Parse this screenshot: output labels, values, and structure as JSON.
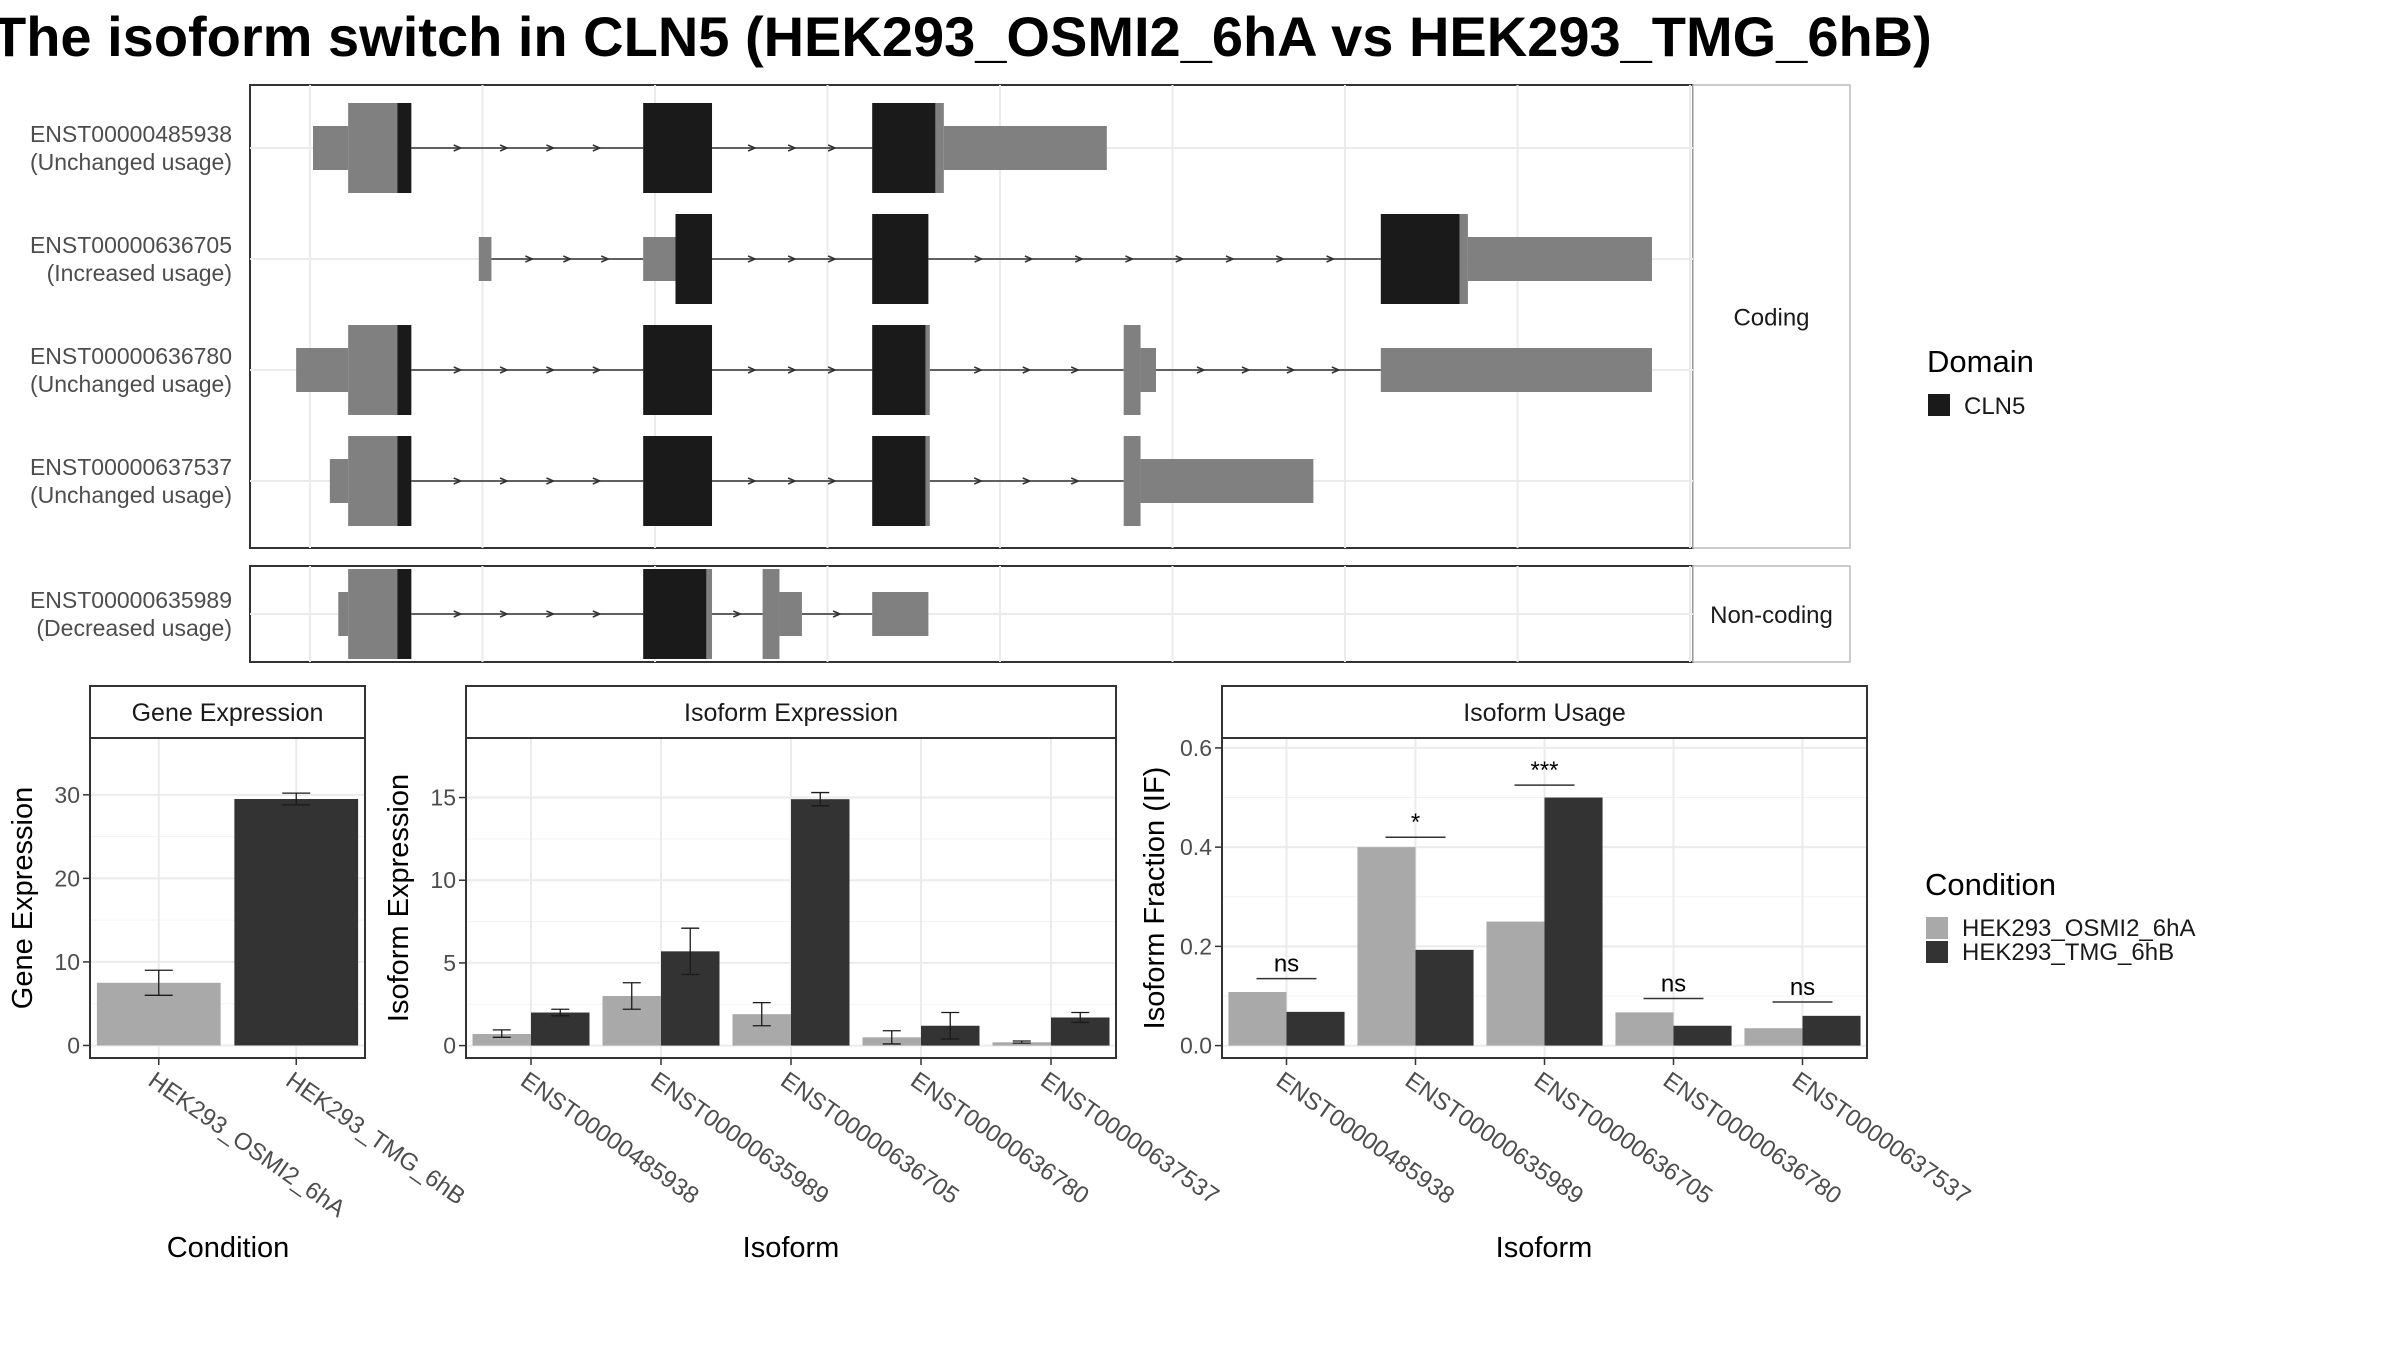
{
  "title": "The isoform switch in CLN5 (HEK293_OSMI2_6hA vs HEK293_TMG_6hB)",
  "colors": {
    "domain": "#1a1a1a",
    "utr": "#808080",
    "cond1": "#a9a9a9",
    "cond2": "#333333",
    "panel_border": "#333333",
    "strip_fill": "#ffffff",
    "grid": "#ebebeb"
  },
  "structure": {
    "coding_label": "Coding",
    "noncoding_label": "Non-coding",
    "coding_isoforms": [
      {
        "id": "ENST00000485938",
        "usage": "(Unchanged usage)",
        "segments": [
          {
            "start": 0.0,
            "end": 0.025,
            "kind": "utr",
            "size": "small"
          },
          {
            "start": 0.025,
            "end": 0.06,
            "kind": "utr",
            "size": "large"
          },
          {
            "start": 0.06,
            "end": 0.07,
            "kind": "cds",
            "size": "large"
          },
          {
            "start": 0.235,
            "end": 0.284,
            "kind": "cds",
            "size": "large"
          },
          {
            "start": 0.398,
            "end": 0.443,
            "kind": "cds",
            "size": "large"
          },
          {
            "start": 0.443,
            "end": 0.449,
            "kind": "utr",
            "size": "large"
          },
          {
            "start": 0.449,
            "end": 0.565,
            "kind": "utr",
            "size": "small"
          }
        ],
        "introns": [
          [
            0.07,
            0.235
          ],
          [
            0.284,
            0.398
          ]
        ]
      },
      {
        "id": "ENST00000636705",
        "usage": "(Increased usage)",
        "segments": [
          {
            "start": 0.118,
            "end": 0.127,
            "kind": "utr",
            "size": "small"
          },
          {
            "start": 0.235,
            "end": 0.258,
            "kind": "utr",
            "size": "small"
          },
          {
            "start": 0.258,
            "end": 0.284,
            "kind": "cds",
            "size": "large"
          },
          {
            "start": 0.398,
            "end": 0.438,
            "kind": "cds",
            "size": "large"
          },
          {
            "start": 0.76,
            "end": 0.816,
            "kind": "cds",
            "size": "large"
          },
          {
            "start": 0.816,
            "end": 0.822,
            "kind": "utr",
            "size": "large"
          },
          {
            "start": 0.822,
            "end": 0.953,
            "kind": "utr",
            "size": "small"
          }
        ],
        "introns": [
          [
            0.127,
            0.235
          ],
          [
            0.284,
            0.398
          ],
          [
            0.438,
            0.76
          ]
        ]
      },
      {
        "id": "ENST00000636780",
        "usage": "(Unchanged usage)",
        "segments": [
          {
            "start": -0.012,
            "end": 0.025,
            "kind": "utr",
            "size": "small"
          },
          {
            "start": 0.025,
            "end": 0.06,
            "kind": "utr",
            "size": "large"
          },
          {
            "start": 0.06,
            "end": 0.07,
            "kind": "cds",
            "size": "large"
          },
          {
            "start": 0.235,
            "end": 0.284,
            "kind": "cds",
            "size": "large"
          },
          {
            "start": 0.398,
            "end": 0.436,
            "kind": "cds",
            "size": "large"
          },
          {
            "start": 0.436,
            "end": 0.439,
            "kind": "utr",
            "size": "large"
          },
          {
            "start": 0.577,
            "end": 0.589,
            "kind": "utr",
            "size": "large"
          },
          {
            "start": 0.589,
            "end": 0.6,
            "kind": "utr",
            "size": "small"
          },
          {
            "start": 0.76,
            "end": 0.953,
            "kind": "utr",
            "size": "small"
          }
        ],
        "introns": [
          [
            0.07,
            0.235
          ],
          [
            0.284,
            0.398
          ],
          [
            0.439,
            0.577
          ],
          [
            0.6,
            0.76
          ]
        ]
      },
      {
        "id": "ENST00000637537",
        "usage": "(Unchanged usage)",
        "segments": [
          {
            "start": 0.012,
            "end": 0.025,
            "kind": "utr",
            "size": "small"
          },
          {
            "start": 0.025,
            "end": 0.06,
            "kind": "utr",
            "size": "large"
          },
          {
            "start": 0.06,
            "end": 0.07,
            "kind": "cds",
            "size": "large"
          },
          {
            "start": 0.235,
            "end": 0.284,
            "kind": "cds",
            "size": "large"
          },
          {
            "start": 0.398,
            "end": 0.436,
            "kind": "cds",
            "size": "large"
          },
          {
            "start": 0.436,
            "end": 0.439,
            "kind": "utr",
            "size": "large"
          },
          {
            "start": 0.577,
            "end": 0.589,
            "kind": "utr",
            "size": "large"
          },
          {
            "start": 0.589,
            "end": 0.712,
            "kind": "utr",
            "size": "small"
          }
        ],
        "introns": [
          [
            0.07,
            0.235
          ],
          [
            0.284,
            0.398
          ],
          [
            0.439,
            0.577
          ]
        ]
      }
    ],
    "noncoding_isoforms": [
      {
        "id": "ENST00000635989",
        "usage": "(Decreased usage)",
        "segments": [
          {
            "start": 0.018,
            "end": 0.025,
            "kind": "utr",
            "size": "small"
          },
          {
            "start": 0.025,
            "end": 0.06,
            "kind": "utr",
            "size": "large"
          },
          {
            "start": 0.06,
            "end": 0.07,
            "kind": "cds",
            "size": "large"
          },
          {
            "start": 0.235,
            "end": 0.28,
            "kind": "cds",
            "size": "large"
          },
          {
            "start": 0.28,
            "end": 0.284,
            "kind": "utr",
            "size": "large"
          },
          {
            "start": 0.32,
            "end": 0.332,
            "kind": "utr",
            "size": "large"
          },
          {
            "start": 0.332,
            "end": 0.348,
            "kind": "utr",
            "size": "small"
          },
          {
            "start": 0.398,
            "end": 0.438,
            "kind": "utr",
            "size": "small"
          }
        ],
        "introns": [
          [
            0.07,
            0.235
          ],
          [
            0.284,
            0.32
          ],
          [
            0.348,
            0.398
          ]
        ]
      }
    ]
  },
  "legend_domain": {
    "title": "Domain",
    "entries": [
      {
        "label": "CLN5",
        "color": "#1a1a1a"
      }
    ]
  },
  "legend_condition": {
    "title": "Condition",
    "entries": [
      {
        "label": "HEK293_OSMI2_6hA",
        "color": "#a9a9a9"
      },
      {
        "label": "HEK293_TMG_6hB",
        "color": "#333333"
      }
    ]
  },
  "chart_data": [
    {
      "type": "bar",
      "title": "Gene Expression",
      "xlabel": "Condition",
      "ylabel": "Gene Expression",
      "categories": [
        "HEK293_OSMI2_6hA",
        "HEK293_TMG_6hB"
      ],
      "values": [
        7.5,
        29.5
      ],
      "errors": [
        [
          6.0,
          9.0
        ],
        [
          28.8,
          30.2
        ]
      ],
      "ylim": [
        -1.5,
        36.8
      ],
      "yticks": [
        0,
        10,
        20,
        30
      ],
      "grid": true
    },
    {
      "type": "bar",
      "title": "Isoform Expression",
      "xlabel": "Isoform",
      "ylabel": "Isoform Expression",
      "categories": [
        "ENST00000485938",
        "ENST00000635989",
        "ENST00000636705",
        "ENST00000636780",
        "ENST00000637537"
      ],
      "series": [
        {
          "name": "HEK293_OSMI2_6hA",
          "values": [
            0.7,
            3.0,
            1.9,
            0.5,
            0.2
          ],
          "errors": [
            [
              0.5,
              0.95
            ],
            [
              2.2,
              3.8
            ],
            [
              1.2,
              2.6
            ],
            [
              0.1,
              0.9
            ],
            [
              0.15,
              0.28
            ]
          ]
        },
        {
          "name": "HEK293_TMG_6hB",
          "values": [
            2.0,
            5.7,
            14.9,
            1.2,
            1.7
          ],
          "errors": [
            [
              1.8,
              2.2
            ],
            [
              4.3,
              7.1
            ],
            [
              14.5,
              15.3
            ],
            [
              0.4,
              2.0
            ],
            [
              1.4,
              2.0
            ]
          ]
        }
      ],
      "ylim": [
        -0.75,
        18.6
      ],
      "yticks": [
        0,
        5,
        10,
        15
      ],
      "grid": true
    },
    {
      "type": "bar",
      "title": "Isoform Usage",
      "xlabel": "Isoform",
      "ylabel": "Isoform Fraction (IF)",
      "categories": [
        "ENST00000485938",
        "ENST00000635989",
        "ENST00000636705",
        "ENST00000636780",
        "ENST00000637537"
      ],
      "series": [
        {
          "name": "HEK293_OSMI2_6hA",
          "values": [
            0.108,
            0.4,
            0.25,
            0.067,
            0.035
          ]
        },
        {
          "name": "HEK293_TMG_6hB",
          "values": [
            0.068,
            0.193,
            0.5,
            0.04,
            0.06
          ]
        }
      ],
      "annotations": [
        "ns",
        "*",
        "***",
        "ns",
        "ns"
      ],
      "annotation_heights": [
        0.135,
        0.42,
        0.525,
        0.095,
        0.088
      ],
      "ylim": [
        -0.025,
        0.62
      ],
      "yticks": [
        0.0,
        0.2,
        0.4,
        0.6
      ],
      "ytick_labels": [
        "0.0",
        "0.2",
        "0.4",
        "0.6"
      ],
      "grid": true
    }
  ]
}
